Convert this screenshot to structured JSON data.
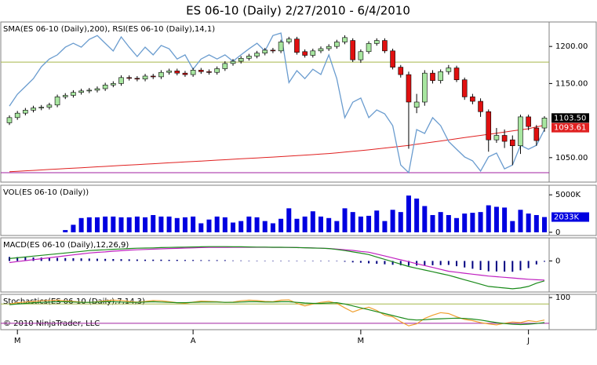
{
  "chart_data": [
    {
      "type": "candlestick",
      "title": "ES 06-10 (Daily)  2/27/2010 - 6/4/2010",
      "label": "SMA(ES 06-10 (Daily),200), RSI(ES 06-10 (Daily),14,1)",
      "categories": [
        null,
        "M",
        null,
        null,
        null,
        null,
        null,
        null,
        null,
        null,
        null,
        null,
        null,
        null,
        null,
        null,
        null,
        null,
        null,
        null,
        null,
        null,
        null,
        "A",
        null,
        null,
        null,
        null,
        null,
        null,
        null,
        null,
        null,
        null,
        null,
        null,
        null,
        null,
        null,
        null,
        null,
        null,
        null,
        null,
        "M",
        null,
        null,
        null,
        null,
        null,
        null,
        null,
        null,
        null,
        null,
        null,
        null,
        null,
        null,
        null,
        null,
        null,
        null,
        null,
        null,
        "J",
        null,
        null
      ],
      "open": [
        1097,
        1104,
        1110,
        1114,
        1117,
        1118,
        1121,
        1132,
        1134,
        1138,
        1140,
        1141,
        1143,
        1148,
        1150,
        1158,
        1157,
        1156,
        1160,
        1159,
        1165,
        1167,
        1164,
        1162,
        1168,
        1166,
        1165,
        1170,
        1177,
        1180,
        1184,
        1187,
        1191,
        1195,
        1194,
        1206,
        1210,
        1193,
        1188,
        1194,
        1197,
        1200,
        1206,
        1208,
        1182,
        1193,
        1204,
        1208,
        1194,
        1172,
        1162,
        1118,
        1125,
        1164,
        1154,
        1166,
        1171,
        1155,
        1132,
        1126,
        1112,
        1074,
        1080,
        1074,
        1066,
        1105,
        1090,
        1090
      ],
      "high": [
        1107,
        1113,
        1117,
        1120,
        1121,
        1124,
        1135,
        1137,
        1141,
        1143,
        1144,
        1146,
        1151,
        1153,
        1161,
        1161,
        1160,
        1163,
        1163,
        1168,
        1170,
        1170,
        1167,
        1171,
        1171,
        1169,
        1173,
        1180,
        1183,
        1187,
        1190,
        1194,
        1198,
        1198,
        1209,
        1213,
        1213,
        1196,
        1197,
        1200,
        1203,
        1209,
        1215,
        1211,
        1196,
        1207,
        1211,
        1211,
        1197,
        1175,
        1166,
        1136,
        1168,
        1168,
        1169,
        1175,
        1174,
        1158,
        1136,
        1130,
        1115,
        1090,
        1088,
        1080,
        1108,
        1108,
        1094,
        1106
      ],
      "low": [
        1094,
        1101,
        1107,
        1111,
        1114,
        1115,
        1118,
        1129,
        1131,
        1135,
        1137,
        1138,
        1140,
        1145,
        1147,
        1154,
        1153,
        1153,
        1156,
        1156,
        1162,
        1161,
        1159,
        1159,
        1163,
        1162,
        1162,
        1167,
        1174,
        1177,
        1181,
        1184,
        1188,
        1191,
        1191,
        1203,
        1189,
        1185,
        1185,
        1191,
        1194,
        1197,
        1203,
        1179,
        1178,
        1190,
        1201,
        1191,
        1169,
        1158,
        1062,
        1110,
        1120,
        1150,
        1150,
        1162,
        1152,
        1128,
        1122,
        1105,
        1058,
        1070,
        1063,
        1040,
        1055,
        1087,
        1066,
        1085
      ],
      "close": [
        1104,
        1110,
        1114,
        1117,
        1118,
        1121,
        1132,
        1134,
        1138,
        1140,
        1141,
        1143,
        1148,
        1150,
        1158,
        1157,
        1156,
        1160,
        1159,
        1165,
        1167,
        1164,
        1162,
        1168,
        1166,
        1165,
        1170,
        1177,
        1180,
        1184,
        1187,
        1191,
        1195,
        1194,
        1206,
        1210,
        1192,
        1188,
        1194,
        1197,
        1200,
        1206,
        1212,
        1182,
        1193,
        1204,
        1208,
        1194,
        1172,
        1162,
        1125,
        1125,
        1164,
        1154,
        1166,
        1171,
        1155,
        1132,
        1126,
        1112,
        1074,
        1080,
        1072,
        1066,
        1105,
        1092,
        1073,
        1103.5
      ],
      "value_label": "1103.50",
      "up_color": "#a8e6a0",
      "down_color": "#e01010",
      "ylim": [
        1017,
        1233
      ],
      "yticks": [
        {
          "value": 1200,
          "label": "1200.00"
        },
        {
          "value": 1150,
          "label": "1150.00"
        },
        {
          "value": 1050,
          "label": "1050.00"
        }
      ],
      "sma": {
        "color": "#e02020",
        "value_label": "1093.61",
        "values": [
          1031,
          1031.6,
          1032.2,
          1032.8,
          1033.4,
          1034,
          1034.6,
          1035.2,
          1035.8,
          1036.4,
          1037,
          1037.6,
          1038.2,
          1038.8,
          1039.4,
          1040,
          1040.6,
          1041.2,
          1041.8,
          1042.4,
          1043,
          1043.6,
          1044.2,
          1044.8,
          1045.4,
          1046,
          1046.6,
          1047.2,
          1047.8,
          1048.4,
          1049,
          1049.6,
          1050.2,
          1050.8,
          1051.4,
          1052,
          1052.7,
          1053.4,
          1054.1,
          1054.8,
          1055.5,
          1056.5,
          1057.5,
          1058.5,
          1059.5,
          1060.5,
          1061.7,
          1062.9,
          1064.1,
          1065.3,
          1066.5,
          1068,
          1069.5,
          1071,
          1072.5,
          1074,
          1075.5,
          1077,
          1078.5,
          1080,
          1081.5,
          1083,
          1084.5,
          1086,
          1087.5,
          1089,
          1091.5,
          1093.61
        ]
      },
      "rsi": {
        "color": "#6a9ccf",
        "ylim": [
          26.6,
          84.5
        ],
        "levels": [
          70,
          30
        ],
        "level_colors": [
          "#a6b84a",
          "#a020a0"
        ],
        "values": [
          54.1,
          58.4,
          61.2,
          64,
          68.3,
          71.1,
          72.6,
          75.4,
          76.8,
          75.4,
          78.2,
          79.6,
          76.8,
          74,
          79.1,
          75.4,
          72,
          75.4,
          72.6,
          76,
          74.8,
          71.1,
          72.6,
          67.4,
          71.1,
          72.6,
          71.1,
          72.6,
          70.3,
          72.6,
          74.8,
          76.8,
          74,
          79.6,
          80.5,
          62.6,
          66.9,
          64,
          67.4,
          65.5,
          72.6,
          64,
          49.9,
          55.5,
          57,
          49.9,
          52.7,
          51.3,
          47,
          32.8,
          30,
          45.6,
          44.2,
          49.9,
          47,
          41.3,
          38.5,
          35.7,
          34.3,
          30.6,
          35.7,
          37.1,
          31.4,
          32.8,
          39.9,
          38.5,
          39.9,
          45.6
        ]
      }
    },
    {
      "type": "bar",
      "label": "VOL(ES 06-10 (Daily))",
      "color": "#0000e0",
      "values": [
        0,
        0,
        0,
        0,
        0,
        0,
        0,
        300,
        1000,
        1900,
        2000,
        2000,
        2100,
        2100,
        2000,
        2000,
        2100,
        2000,
        2300,
        2100,
        2100,
        1900,
        2000,
        2100,
        1200,
        1700,
        2100,
        2000,
        1300,
        1500,
        2100,
        2000,
        1500,
        1200,
        1800,
        3200,
        1800,
        2100,
        2800,
        2100,
        1900,
        1500,
        3200,
        2700,
        2100,
        2200,
        2900,
        1500,
        3000,
        2700,
        4900,
        4500,
        3500,
        2300,
        2700,
        2300,
        1900,
        2500,
        2600,
        2700,
        3600,
        3400,
        3300,
        1500,
        3000,
        2500,
        2300,
        2033
      ],
      "value_label": "2033K",
      "ylim": [
        -426,
        6277
      ],
      "yticks": [
        {
          "value": 5000,
          "label": "5000K"
        },
        0
      ]
    },
    {
      "type": "macd",
      "label": "MACD(ES 06-10 (Daily),12,26,9)",
      "ylim": [
        -19.5,
        14.5
      ],
      "yticks": [
        0
      ],
      "macd": {
        "color": "#1a8a1a",
        "values": [
          1.5,
          2,
          2.5,
          3,
          3.5,
          4,
          4.5,
          5,
          5.5,
          6,
          6.5,
          6.8,
          7,
          7.3,
          7.5,
          7.8,
          8,
          8.1,
          8.2,
          8.4,
          8.5,
          8.6,
          8.7,
          8.8,
          8.9,
          9,
          9,
          9,
          8.9,
          8.9,
          8.8,
          8.7,
          8.7,
          8.6,
          8.6,
          8.5,
          8.4,
          8.3,
          8.1,
          8,
          7.8,
          7.2,
          6.5,
          5.7,
          4.9,
          4,
          2.5,
          1,
          -0.5,
          -2,
          -3.5,
          -4.6,
          -5.7,
          -6.8,
          -7.9,
          -9,
          -10.4,
          -11.8,
          -13.2,
          -14.6,
          -16,
          -16.5,
          -17,
          -17.5,
          -17,
          -16,
          -14,
          -12.5
        ]
      },
      "signal": {
        "color": "#c020c0",
        "values": [
          -1,
          -0.4,
          0.2,
          0.8,
          1.4,
          2,
          2.6,
          3.2,
          3.8,
          4.4,
          5,
          5.4,
          5.7,
          6.1,
          6.4,
          6.8,
          7,
          7.2,
          7.4,
          7.6,
          7.8,
          7.9,
          8.1,
          8.2,
          8.4,
          8.5,
          8.5,
          8.5,
          8.6,
          8.6,
          8.6,
          8.6,
          8.6,
          8.5,
          8.5,
          8.5,
          8.4,
          8.3,
          8.2,
          8,
          7.8,
          7.4,
          7,
          6.6,
          6,
          5.5,
          4.3,
          3.1,
          1.9,
          0.7,
          -0.5,
          -1.7,
          -2.9,
          -4.1,
          -5.3,
          -6.5,
          -7.1,
          -7.7,
          -8.3,
          -8.9,
          -9.5,
          -9.9,
          -10.3,
          -10.7,
          -11.1,
          -11.5,
          -11.8,
          -12
        ]
      },
      "histogram": {
        "color": "#000080",
        "values": [
          2.5,
          2.4,
          2.3,
          2.2,
          2.1,
          2,
          1.9,
          1.8,
          1.7,
          1.6,
          1.5,
          1.4,
          1.3,
          1.2,
          1.1,
          1,
          0.9,
          0.8,
          0.8,
          0.8,
          0.7,
          0.7,
          0.6,
          0.6,
          0.5,
          0.5,
          0.5,
          0.5,
          0.3,
          0.3,
          0.2,
          0.1,
          0.1,
          0.1,
          0.1,
          0,
          0,
          0,
          -0.1,
          0,
          0,
          -0.2,
          -0.5,
          -0.9,
          -1.1,
          -1.5,
          -1.8,
          -2.1,
          -2.4,
          -2.7,
          -3,
          -2.9,
          -2.8,
          -2.7,
          -2.6,
          -2.5,
          -3.3,
          -4.1,
          -4.9,
          -5.7,
          -6.5,
          -6.6,
          -6.7,
          -6.8,
          -5.9,
          -4.5,
          -2.2,
          -0.5
        ]
      }
    },
    {
      "type": "stochastics",
      "label": "Stochastics(ES 06-10 (Daily),7,14,3)",
      "footer": "© 2010 NinjaTrader, LLC",
      "ylim": [
        0,
        110
      ],
      "yticks": [
        100
      ],
      "levels": [
        80,
        20
      ],
      "level_colors": [
        "#a6b84a",
        "#a020a0"
      ],
      "d": {
        "color": "#1a8a1a",
        "values": [
          78,
          80,
          82,
          84,
          85,
          86,
          87,
          87,
          86,
          85,
          85,
          86,
          87,
          87,
          86,
          85,
          85,
          86,
          87,
          86,
          85,
          84,
          84,
          85,
          86,
          86,
          86,
          85,
          85,
          86,
          87,
          87,
          86,
          86,
          87,
          87,
          85,
          83,
          82,
          82,
          83,
          84,
          80,
          74,
          68,
          62,
          56,
          50,
          44,
          38,
          32,
          30,
          31,
          33,
          34,
          35,
          36,
          35,
          33,
          30,
          26,
          22,
          19,
          17,
          16,
          17,
          19,
          22
        ]
      },
      "k": {
        "color": "#f0a030",
        "values": [
          80,
          84,
          86,
          88,
          90,
          91,
          92,
          90,
          88,
          86,
          85,
          87,
          90,
          92,
          91,
          88,
          86,
          88,
          91,
          90,
          87,
          84,
          82,
          86,
          89,
          88,
          87,
          85,
          86,
          90,
          92,
          91,
          88,
          87,
          92,
          93,
          82,
          74,
          80,
          85,
          88,
          82,
          68,
          55,
          64,
          70,
          60,
          45,
          40,
          25,
          12,
          18,
          35,
          45,
          53,
          50,
          40,
          32,
          28,
          22,
          18,
          15,
          20,
          24,
          22,
          28,
          25,
          30
        ]
      }
    }
  ]
}
